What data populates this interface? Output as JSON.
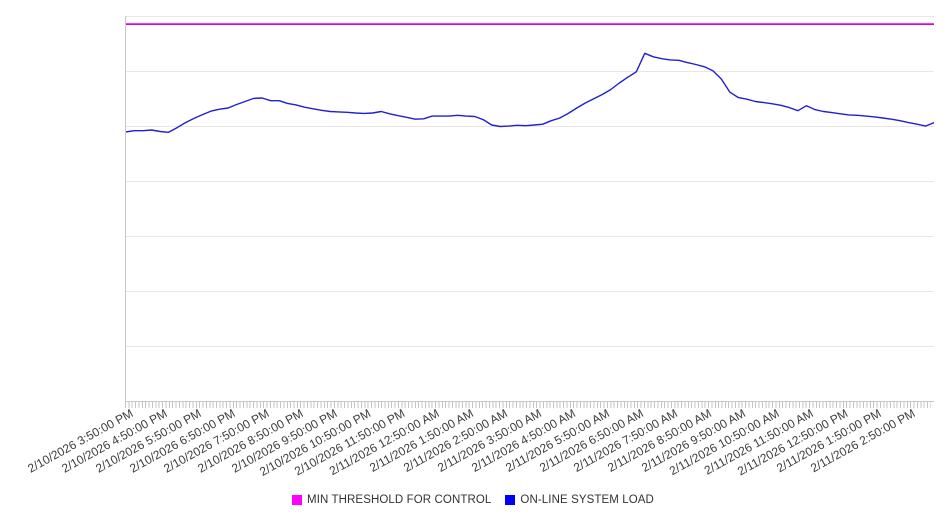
{
  "chart": {
    "background_color": "#ffffff",
    "axis_color": "#c8c8c8",
    "gridline_color": "#e7e7e7",
    "minor_tick_color": "#c4c4c4",
    "x_label_color": "#3d3d3d",
    "x_label_rotation_deg": -29
  },
  "legend": {
    "items": [
      {
        "label": "MIN THRESHOLD FOR CONTROL",
        "swatch_color": "#ff00ff"
      },
      {
        "label": "ON-LINE SYSTEM LOAD",
        "swatch_color": "#0000ff"
      }
    ]
  },
  "chart_data": {
    "type": "line",
    "title": "",
    "xlabel": "",
    "ylabel": "",
    "ylim": [
      0,
      100
    ],
    "y_axis_tick_labels_visible": false,
    "value_units": "relative load (no y-axis labels shown in chart)",
    "grid": "horizontal",
    "horizontal_gridline_count": 8,
    "legend_position": "bottom-center",
    "x_tick_labels": [
      "2/10/2026 3:50:00 PM",
      "2/10/2026 4:50:00 PM",
      "2/10/2026 5:50:00 PM",
      "2/10/2026 6:50:00 PM",
      "2/10/2026 7:50:00 PM",
      "2/10/2026 8:50:00 PM",
      "2/10/2026 9:50:00 PM",
      "2/10/2026 10:50:00 PM",
      "2/10/2026 11:50:00 PM",
      "2/11/2026 12:50:00 AM",
      "2/11/2026 1:50:00 AM",
      "2/11/2026 2:50:00 AM",
      "2/11/2026 3:50:00 AM",
      "2/11/2026 4:50:00 AM",
      "2/11/2026 5:50:00 AM",
      "2/11/2026 6:50:00 AM",
      "2/11/2026 7:50:00 AM",
      "2/11/2026 8:50:00 AM",
      "2/11/2026 9:50:00 AM",
      "2/11/2026 10:50:00 AM",
      "2/11/2026 11:50:00 AM",
      "2/11/2026 12:50:00 PM",
      "2/11/2026 1:50:00 PM",
      "2/11/2026 2:50:00 PM"
    ],
    "series": [
      {
        "name": "MIN THRESHOLD FOR CONTROL",
        "type": "constant-threshold",
        "color": "#e000dd",
        "value": 97.9
      },
      {
        "name": "ON-LINE SYSTEM LOAD",
        "type": "line",
        "color": "#2020d0",
        "start": "2/10/2026 3:50:00 PM",
        "interval_minutes": 15,
        "values": [
          69.9,
          70.2,
          70.2,
          70.4,
          70.0,
          69.8,
          71.0,
          72.3,
          73.4,
          74.4,
          75.3,
          75.8,
          76.1,
          77.0,
          77.8,
          78.6,
          78.7,
          78.0,
          78.0,
          77.3,
          76.9,
          76.3,
          75.9,
          75.5,
          75.2,
          75.1,
          75.0,
          74.8,
          74.7,
          74.8,
          75.2,
          74.6,
          74.1,
          73.7,
          73.2,
          73.3,
          74.0,
          74.0,
          74.0,
          74.2,
          74.0,
          73.9,
          73.1,
          71.7,
          71.3,
          71.4,
          71.6,
          71.5,
          71.7,
          71.9,
          72.8,
          73.5,
          74.7,
          76.1,
          77.4,
          78.5,
          79.6,
          80.9,
          82.6,
          84.1,
          85.5,
          90.3,
          89.4,
          88.9,
          88.6,
          88.5,
          87.9,
          87.4,
          86.8,
          85.8,
          83.6,
          80.2,
          78.8,
          78.4,
          77.8,
          77.5,
          77.2,
          76.8,
          76.2,
          75.4,
          76.7,
          75.7,
          75.2,
          74.9,
          74.6,
          74.3,
          74.2,
          74.0,
          73.8,
          73.5,
          73.2,
          72.8,
          72.3,
          71.9,
          71.4,
          72.3
        ]
      }
    ]
  }
}
